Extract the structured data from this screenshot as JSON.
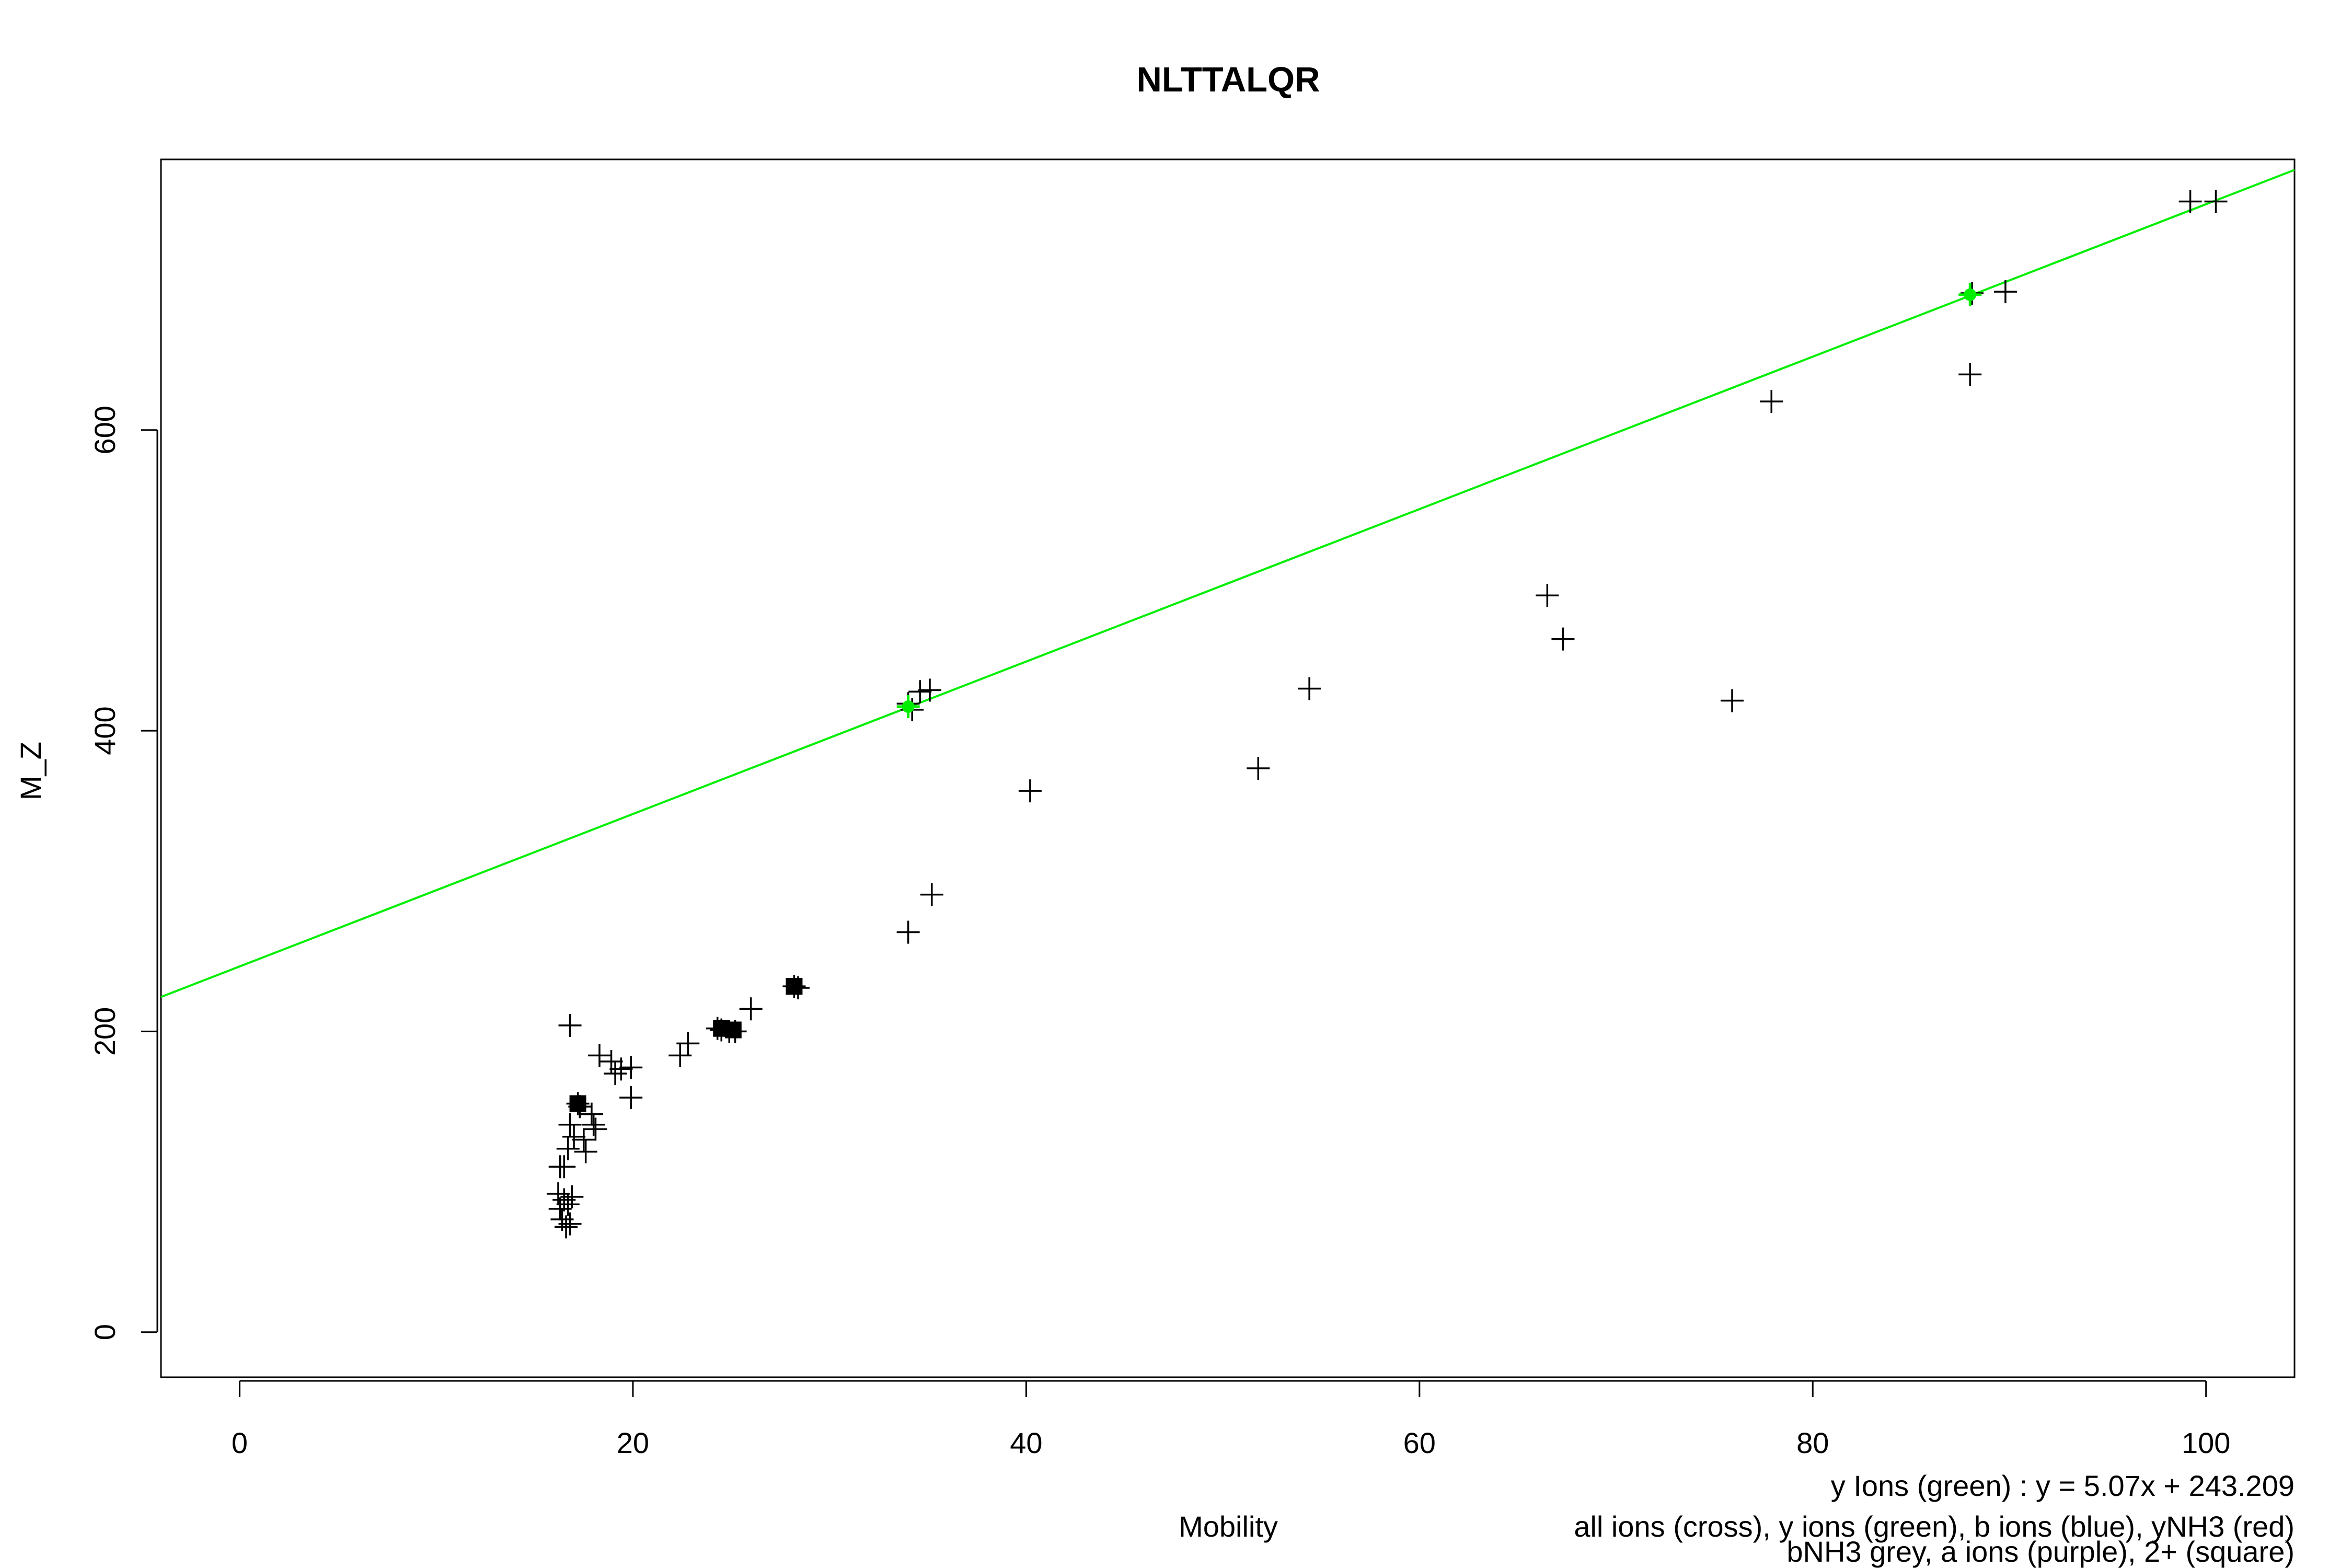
{
  "chart_data": {
    "type": "scatter",
    "title": "NLTTALQR",
    "xlabel": "Mobility",
    "ylabel": "M_Z",
    "xlim": [
      -4,
      104.5
    ],
    "ylim": [
      -30,
      780
    ],
    "x_ticks": [
      "0",
      "20",
      "40",
      "60",
      "80",
      "100"
    ],
    "y_ticks": [
      "0",
      "200",
      "400",
      "600"
    ],
    "grid": false,
    "annotations": [
      "y Ions (green) : y = 5.07x + 243.209",
      "all ions (cross), y ions (green), b ions (blue), yNH3 (red)",
      "bNH3 grey, a ions (purple), 2+ (square)"
    ],
    "fit_line": {
      "slope": 5.07,
      "intercept": 243.209,
      "color": "#00ee00"
    },
    "series": [
      {
        "name": "all ions (cross)",
        "color": "#000000",
        "marker": "cross",
        "points": [
          [
            16.3,
            110
          ],
          [
            16.5,
            110
          ],
          [
            16.2,
            92
          ],
          [
            16.3,
            82
          ],
          [
            16.4,
            75
          ],
          [
            16.6,
            70
          ],
          [
            16.8,
            72
          ],
          [
            16.5,
            88
          ],
          [
            16.7,
            85
          ],
          [
            16.9,
            90
          ],
          [
            16.7,
            122
          ],
          [
            16.8,
            138
          ],
          [
            17.0,
            130
          ],
          [
            16.8,
            204
          ],
          [
            17.2,
            152
          ],
          [
            17.3,
            150
          ],
          [
            17.5,
            128
          ],
          [
            17.6,
            120
          ],
          [
            17.9,
            145
          ],
          [
            18.0,
            138
          ],
          [
            18.1,
            135
          ],
          [
            18.3,
            184
          ],
          [
            18.9,
            180
          ],
          [
            19.1,
            172
          ],
          [
            19.4,
            175
          ],
          [
            19.9,
            176
          ],
          [
            19.9,
            156
          ],
          [
            22.4,
            184
          ],
          [
            22.8,
            192
          ],
          [
            24.3,
            202
          ],
          [
            24.5,
            201
          ],
          [
            24.9,
            200
          ],
          [
            25.2,
            200
          ],
          [
            26.0,
            215
          ],
          [
            28.2,
            230
          ],
          [
            28.4,
            229
          ],
          [
            34.0,
            418
          ],
          [
            34.2,
            414
          ],
          [
            34.6,
            426
          ],
          [
            35.1,
            427
          ],
          [
            34.0,
            266
          ],
          [
            35.2,
            291
          ],
          [
            40.2,
            360
          ],
          [
            51.8,
            375
          ],
          [
            54.4,
            428
          ],
          [
            66.5,
            490
          ],
          [
            67.3,
            461
          ],
          [
            75.9,
            420
          ],
          [
            77.9,
            619
          ],
          [
            88.1,
            691
          ],
          [
            88.0,
            637
          ],
          [
            89.8,
            692
          ],
          [
            99.2,
            752
          ],
          [
            100.5,
            752
          ]
        ]
      },
      {
        "name": "y ions (green)",
        "color": "#00ee00",
        "marker": "filled",
        "points": [
          [
            34.0,
            416
          ],
          [
            88.0,
            690
          ]
        ]
      },
      {
        "name": "2+ (square)",
        "color": "#000000",
        "marker": "square",
        "points": [
          [
            17.2,
            152
          ],
          [
            24.5,
            202
          ],
          [
            25.1,
            201
          ],
          [
            28.2,
            230
          ]
        ]
      }
    ]
  }
}
